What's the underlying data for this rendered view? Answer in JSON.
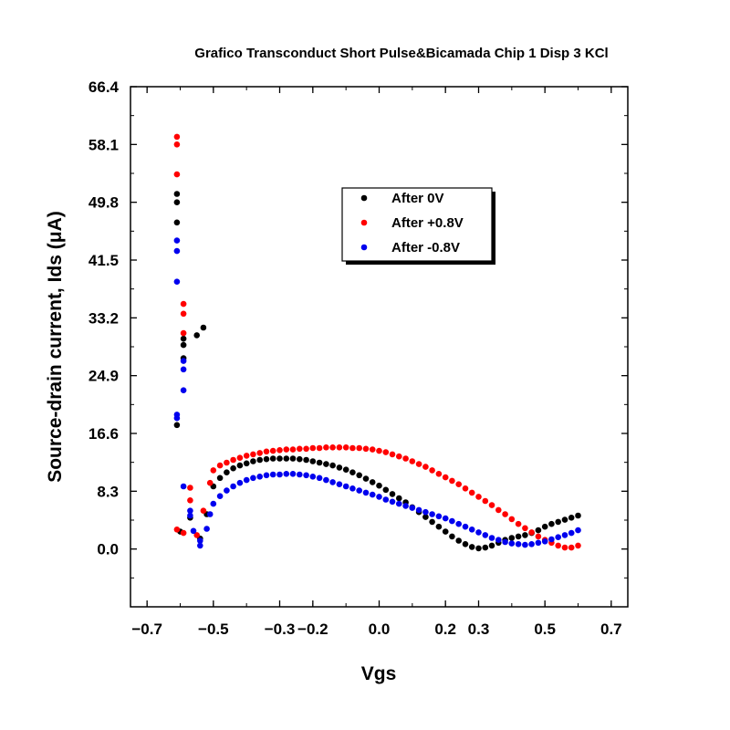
{
  "chart_data": {
    "type": "scatter",
    "title": "Grafico Transconduct Short Pulse&Bicamada Chip 1 Disp 3 KCl",
    "xlabel": "Vgs",
    "ylabel": "Source-drain current, Ids (μA)",
    "xlim": [
      -0.75,
      0.75
    ],
    "ylim": [
      -8.3,
      66.4
    ],
    "x_ticks": [
      -0.7,
      -0.5,
      -0.3,
      -0.2,
      0.0,
      0.2,
      0.3,
      0.5,
      0.7
    ],
    "x_tick_labels": [
      "−0.7",
      "−0.5",
      "−0.3",
      "−0.2",
      "0.0",
      "0.2",
      "0.3",
      "0.5",
      "0.7"
    ],
    "y_ticks": [
      0.0,
      8.3,
      16.6,
      24.9,
      33.2,
      41.5,
      49.8,
      58.1,
      66.4
    ],
    "y_tick_labels": [
      "0.0",
      "8.3",
      "16.6",
      "24.9",
      "33.2",
      "41.5",
      "49.8",
      "58.1",
      "66.4"
    ],
    "grid": false,
    "legend_position": "top-center",
    "series": [
      {
        "name": "After 0V",
        "color": "#000000",
        "points": [
          [
            -0.61,
            17.8
          ],
          [
            -0.61,
            46.9
          ],
          [
            -0.61,
            49.8
          ],
          [
            -0.61,
            51.0
          ],
          [
            -0.59,
            27.4
          ],
          [
            -0.59,
            29.3
          ],
          [
            -0.59,
            30.2
          ],
          [
            -0.55,
            30.7
          ],
          [
            -0.53,
            31.8
          ],
          [
            -0.6,
            2.5
          ],
          [
            -0.57,
            4.5
          ],
          [
            -0.54,
            1.5
          ],
          [
            -0.52,
            5.0
          ],
          [
            -0.5,
            9.0
          ],
          [
            -0.48,
            10.2
          ],
          [
            -0.46,
            11.0
          ],
          [
            -0.44,
            11.6
          ],
          [
            -0.42,
            12.0
          ],
          [
            -0.4,
            12.3
          ],
          [
            -0.38,
            12.6
          ],
          [
            -0.36,
            12.8
          ],
          [
            -0.34,
            12.9
          ],
          [
            -0.32,
            13.0
          ],
          [
            -0.3,
            13.0
          ],
          [
            -0.28,
            13.0
          ],
          [
            -0.26,
            13.0
          ],
          [
            -0.24,
            12.9
          ],
          [
            -0.22,
            12.8
          ],
          [
            -0.2,
            12.6
          ],
          [
            -0.18,
            12.4
          ],
          [
            -0.16,
            12.2
          ],
          [
            -0.14,
            12.0
          ],
          [
            -0.12,
            11.7
          ],
          [
            -0.1,
            11.4
          ],
          [
            -0.08,
            11.0
          ],
          [
            -0.06,
            10.6
          ],
          [
            -0.04,
            10.1
          ],
          [
            -0.02,
            9.6
          ],
          [
            0.0,
            9.1
          ],
          [
            0.02,
            8.5
          ],
          [
            0.04,
            7.9
          ],
          [
            0.06,
            7.3
          ],
          [
            0.08,
            6.7
          ],
          [
            0.1,
            6.0
          ],
          [
            0.12,
            5.3
          ],
          [
            0.14,
            4.6
          ],
          [
            0.16,
            3.9
          ],
          [
            0.18,
            3.2
          ],
          [
            0.2,
            2.5
          ],
          [
            0.22,
            1.8
          ],
          [
            0.24,
            1.2
          ],
          [
            0.26,
            0.7
          ],
          [
            0.28,
            0.3
          ],
          [
            0.3,
            0.1
          ],
          [
            0.32,
            0.2
          ],
          [
            0.34,
            0.5
          ],
          [
            0.36,
            0.9
          ],
          [
            0.38,
            1.3
          ],
          [
            0.4,
            1.6
          ],
          [
            0.42,
            1.8
          ],
          [
            0.44,
            2.0
          ],
          [
            0.46,
            2.3
          ],
          [
            0.48,
            2.7
          ],
          [
            0.5,
            3.2
          ],
          [
            0.52,
            3.6
          ],
          [
            0.54,
            3.9
          ],
          [
            0.56,
            4.2
          ],
          [
            0.58,
            4.5
          ],
          [
            0.6,
            4.8
          ]
        ]
      },
      {
        "name": "After +0.8V",
        "color": "#ff0000",
        "points": [
          [
            -0.61,
            59.2
          ],
          [
            -0.61,
            58.1
          ],
          [
            -0.61,
            53.8
          ],
          [
            -0.59,
            35.2
          ],
          [
            -0.59,
            33.8
          ],
          [
            -0.59,
            31.0
          ],
          [
            -0.61,
            2.8
          ],
          [
            -0.59,
            2.3
          ],
          [
            -0.57,
            8.8
          ],
          [
            -0.57,
            7.0
          ],
          [
            -0.55,
            2.0
          ],
          [
            -0.53,
            5.5
          ],
          [
            -0.51,
            9.5
          ],
          [
            -0.5,
            11.3
          ],
          [
            -0.48,
            12.0
          ],
          [
            -0.46,
            12.4
          ],
          [
            -0.44,
            12.8
          ],
          [
            -0.42,
            13.1
          ],
          [
            -0.4,
            13.4
          ],
          [
            -0.38,
            13.6
          ],
          [
            -0.36,
            13.8
          ],
          [
            -0.34,
            14.0
          ],
          [
            -0.32,
            14.1
          ],
          [
            -0.3,
            14.2
          ],
          [
            -0.28,
            14.3
          ],
          [
            -0.26,
            14.3
          ],
          [
            -0.24,
            14.4
          ],
          [
            -0.22,
            14.4
          ],
          [
            -0.2,
            14.5
          ],
          [
            -0.18,
            14.5
          ],
          [
            -0.16,
            14.6
          ],
          [
            -0.14,
            14.6
          ],
          [
            -0.12,
            14.6
          ],
          [
            -0.1,
            14.6
          ],
          [
            -0.08,
            14.5
          ],
          [
            -0.06,
            14.5
          ],
          [
            -0.04,
            14.4
          ],
          [
            -0.02,
            14.3
          ],
          [
            0.0,
            14.1
          ],
          [
            0.02,
            13.9
          ],
          [
            0.04,
            13.6
          ],
          [
            0.06,
            13.3
          ],
          [
            0.08,
            13.0
          ],
          [
            0.1,
            12.6
          ],
          [
            0.12,
            12.2
          ],
          [
            0.14,
            11.8
          ],
          [
            0.16,
            11.3
          ],
          [
            0.18,
            10.8
          ],
          [
            0.2,
            10.3
          ],
          [
            0.22,
            9.8
          ],
          [
            0.24,
            9.3
          ],
          [
            0.26,
            8.7
          ],
          [
            0.28,
            8.1
          ],
          [
            0.3,
            7.5
          ],
          [
            0.32,
            6.9
          ],
          [
            0.34,
            6.3
          ],
          [
            0.36,
            5.6
          ],
          [
            0.38,
            5.0
          ],
          [
            0.4,
            4.3
          ],
          [
            0.42,
            3.6
          ],
          [
            0.44,
            3.0
          ],
          [
            0.46,
            2.4
          ],
          [
            0.48,
            1.8
          ],
          [
            0.5,
            1.3
          ],
          [
            0.52,
            0.9
          ],
          [
            0.54,
            0.5
          ],
          [
            0.56,
            0.2
          ],
          [
            0.58,
            0.2
          ],
          [
            0.6,
            0.5
          ]
        ]
      },
      {
        "name": "After -0.8V",
        "color": "#0000ee",
        "points": [
          [
            -0.61,
            44.3
          ],
          [
            -0.61,
            42.8
          ],
          [
            -0.61,
            38.4
          ],
          [
            -0.61,
            19.3
          ],
          [
            -0.61,
            18.8
          ],
          [
            -0.59,
            27.0
          ],
          [
            -0.59,
            25.8
          ],
          [
            -0.59,
            22.8
          ],
          [
            -0.59,
            9.0
          ],
          [
            -0.57,
            5.5
          ],
          [
            -0.57,
            4.8
          ],
          [
            -0.56,
            2.6
          ],
          [
            -0.54,
            0.5
          ],
          [
            -0.54,
            1.2
          ],
          [
            -0.52,
            2.9
          ],
          [
            -0.51,
            5.0
          ],
          [
            -0.5,
            6.5
          ],
          [
            -0.48,
            7.6
          ],
          [
            -0.46,
            8.4
          ],
          [
            -0.44,
            9.0
          ],
          [
            -0.42,
            9.5
          ],
          [
            -0.4,
            9.9
          ],
          [
            -0.38,
            10.2
          ],
          [
            -0.36,
            10.4
          ],
          [
            -0.34,
            10.6
          ],
          [
            -0.32,
            10.7
          ],
          [
            -0.3,
            10.7
          ],
          [
            -0.28,
            10.8
          ],
          [
            -0.26,
            10.8
          ],
          [
            -0.24,
            10.7
          ],
          [
            -0.22,
            10.6
          ],
          [
            -0.2,
            10.4
          ],
          [
            -0.18,
            10.2
          ],
          [
            -0.16,
            9.9
          ],
          [
            -0.14,
            9.6
          ],
          [
            -0.12,
            9.3
          ],
          [
            -0.1,
            9.0
          ],
          [
            -0.08,
            8.7
          ],
          [
            -0.06,
            8.4
          ],
          [
            -0.04,
            8.1
          ],
          [
            -0.02,
            7.8
          ],
          [
            0.0,
            7.5
          ],
          [
            0.02,
            7.1
          ],
          [
            0.04,
            6.8
          ],
          [
            0.06,
            6.5
          ],
          [
            0.08,
            6.2
          ],
          [
            0.1,
            5.9
          ],
          [
            0.12,
            5.6
          ],
          [
            0.14,
            5.3
          ],
          [
            0.16,
            5.0
          ],
          [
            0.18,
            4.7
          ],
          [
            0.2,
            4.4
          ],
          [
            0.22,
            4.0
          ],
          [
            0.24,
            3.6
          ],
          [
            0.26,
            3.2
          ],
          [
            0.28,
            2.8
          ],
          [
            0.3,
            2.4
          ],
          [
            0.32,
            2.0
          ],
          [
            0.34,
            1.6
          ],
          [
            0.36,
            1.3
          ],
          [
            0.38,
            1.0
          ],
          [
            0.4,
            0.8
          ],
          [
            0.42,
            0.7
          ],
          [
            0.44,
            0.6
          ],
          [
            0.46,
            0.7
          ],
          [
            0.48,
            0.9
          ],
          [
            0.5,
            1.1
          ],
          [
            0.52,
            1.4
          ],
          [
            0.54,
            1.7
          ],
          [
            0.56,
            2.0
          ],
          [
            0.58,
            2.3
          ],
          [
            0.6,
            2.7
          ]
        ]
      }
    ]
  }
}
